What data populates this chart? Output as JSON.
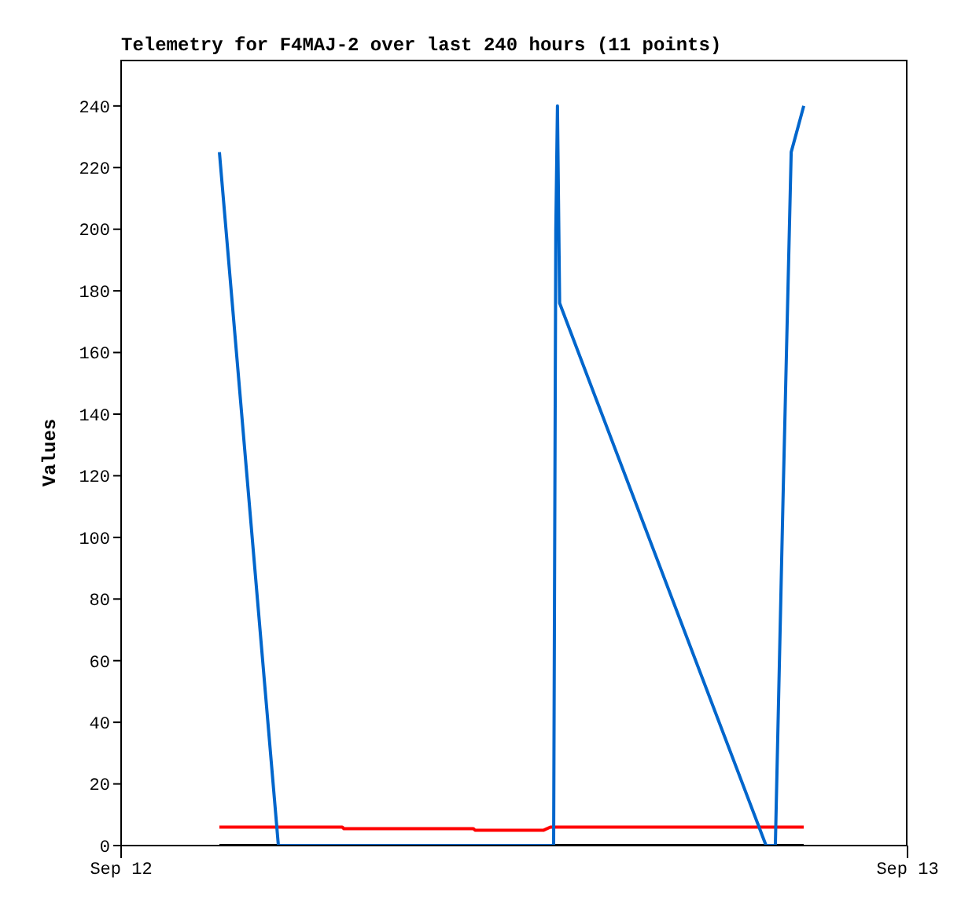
{
  "chart_data": {
    "type": "line",
    "title": "Telemetry for F4MAJ-2 over last 240 hours (11 points)",
    "ylabel": "Values",
    "xlim": [
      "--09-12",
      "--09-13"
    ],
    "xticks": [
      {
        "value": "--09-12",
        "label": "Sep 12"
      },
      {
        "value": "--09-13",
        "label": "Sep 13"
      }
    ],
    "ylim": [
      0,
      255
    ],
    "yticks": [
      0,
      20,
      40,
      60,
      80,
      100,
      120,
      140,
      160,
      180,
      200,
      220,
      240
    ],
    "grid": false,
    "marker": "none",
    "line_style": "solid",
    "series": [
      {
        "color": "#000000",
        "x": [
          "--09-12T03:00",
          "--09-12T04:48",
          "--09-12T13:12",
          "--09-12T13:16",
          "--09-12T13:19",
          "--09-12T13:23",
          "--09-12T19:41",
          "--09-12T19:58",
          "--09-12T20:12",
          "--09-12T20:27",
          "--09-12T20:50"
        ],
        "values": [
          0,
          0,
          0,
          0,
          0,
          0,
          0,
          0,
          0,
          0,
          0
        ]
      },
      {
        "color": "#ff0000",
        "x": [
          "--09-12T03:00",
          "--09-12T06:45",
          "--09-12T06:48",
          "--09-12T10:45",
          "--09-12T10:48",
          "--09-12T12:54",
          "--09-12T13:06",
          "--09-12T20:50"
        ],
        "values": [
          6,
          6,
          5.5,
          5.5,
          5,
          5,
          6,
          6
        ]
      },
      {
        "color": "#0066cc",
        "x": [
          "--09-12T03:00",
          "--09-12T04:48",
          "--09-12T13:12",
          "--09-12T13:16",
          "--09-12T13:19",
          "--09-12T13:23",
          "--09-12T19:41",
          "--09-12T19:58",
          "--09-12T20:12",
          "--09-12T20:27",
          "--09-12T20:50"
        ],
        "values": [
          225,
          0,
          0,
          200,
          240,
          176,
          0,
          0,
          112,
          225,
          240
        ]
      }
    ]
  }
}
